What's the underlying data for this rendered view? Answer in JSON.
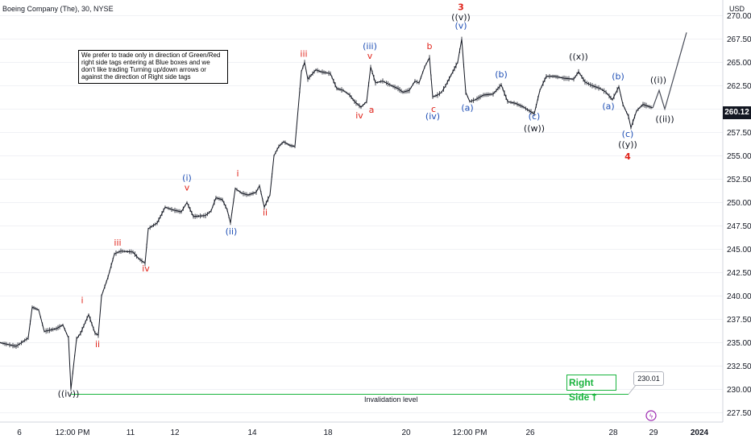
{
  "header": {
    "title": "Boeing Company (The), 30, NYSE",
    "currency": "USD"
  },
  "note": "We prefer to trade only in direction of Green/Red right side tags entering at Blue boxes and we don't like trading Turning up/down arrows or against the direction of Right side tags",
  "right_side_tag": {
    "label": "Right Side",
    "arrow": "⭡"
  },
  "invalidation": {
    "label": "Invalidation level",
    "price": "230.01"
  },
  "last_price": "260.12",
  "chart_data": {
    "type": "line",
    "ylim": [
      226.5,
      272.0
    ],
    "y_ticks": [
      "227.50",
      "230.00",
      "232.50",
      "235.00",
      "237.50",
      "240.00",
      "242.50",
      "245.00",
      "247.50",
      "250.00",
      "252.50",
      "255.00",
      "257.50",
      "260.00",
      "262.50",
      "265.00",
      "267.50",
      "270.00"
    ],
    "x_ticks": [
      "6",
      "12:00 PM",
      "11",
      "12",
      "14",
      "18",
      "20",
      "12:00 PM",
      "26",
      "28",
      "29",
      "2024"
    ],
    "price_path": [
      [
        0,
        235.0
      ],
      [
        20,
        234.6
      ],
      [
        35,
        235.5
      ],
      [
        40,
        238.8
      ],
      [
        48,
        238.5
      ],
      [
        55,
        236.2
      ],
      [
        70,
        236.5
      ],
      [
        78,
        236.9
      ],
      [
        85,
        235.5
      ],
      [
        88,
        230.01
      ],
      [
        95,
        235.4
      ],
      [
        100,
        236.0
      ],
      [
        110,
        238.0
      ],
      [
        118,
        236.0
      ],
      [
        122,
        235.8
      ],
      [
        126,
        240.0
      ],
      [
        134,
        242.0
      ],
      [
        142,
        244.5
      ],
      [
        150,
        244.8
      ],
      [
        165,
        244.7
      ],
      [
        172,
        244.0
      ],
      [
        180,
        243.5
      ],
      [
        184,
        247.2
      ],
      [
        195,
        247.8
      ],
      [
        205,
        249.5
      ],
      [
        215,
        249.2
      ],
      [
        225,
        249.0
      ],
      [
        232,
        250.0
      ],
      [
        240,
        248.5
      ],
      [
        255,
        248.6
      ],
      [
        262,
        249.1
      ],
      [
        268,
        250.5
      ],
      [
        276,
        250.3
      ],
      [
        282,
        249.2
      ],
      [
        286,
        247.8
      ],
      [
        292,
        251.5
      ],
      [
        300,
        251.0
      ],
      [
        308,
        250.8
      ],
      [
        318,
        251.1
      ],
      [
        322,
        251.8
      ],
      [
        328,
        249.5
      ],
      [
        335,
        250.8
      ],
      [
        340,
        255.0
      ],
      [
        346,
        256.0
      ],
      [
        352,
        256.5
      ],
      [
        360,
        256.1
      ],
      [
        366,
        256.0
      ],
      [
        370,
        260.0
      ],
      [
        374,
        264.0
      ],
      [
        378,
        265.0
      ],
      [
        382,
        263.2
      ],
      [
        392,
        264.2
      ],
      [
        398,
        264.0
      ],
      [
        410,
        263.8
      ],
      [
        418,
        262.2
      ],
      [
        426,
        262.0
      ],
      [
        434,
        261.5
      ],
      [
        440,
        260.8
      ],
      [
        448,
        260.2
      ],
      [
        455,
        260.8
      ],
      [
        460,
        264.5
      ],
      [
        466,
        262.8
      ],
      [
        475,
        263.0
      ],
      [
        486,
        262.5
      ],
      [
        494,
        262.2
      ],
      [
        500,
        261.8
      ],
      [
        508,
        262.0
      ],
      [
        515,
        263.0
      ],
      [
        520,
        262.8
      ],
      [
        527,
        264.5
      ],
      [
        533,
        265.5
      ],
      [
        537,
        261.3
      ],
      [
        543,
        261.5
      ],
      [
        548,
        261.8
      ],
      [
        553,
        262.5
      ],
      [
        562,
        264.0
      ],
      [
        568,
        265.0
      ],
      [
        573,
        267.5
      ],
      [
        578,
        261.8
      ],
      [
        583,
        260.8
      ],
      [
        590,
        261.0
      ],
      [
        600,
        261.5
      ],
      [
        612,
        261.6
      ],
      [
        622,
        262.6
      ],
      [
        630,
        260.8
      ],
      [
        640,
        260.6
      ],
      [
        650,
        260.2
      ],
      [
        657,
        259.8
      ],
      [
        663,
        259.5
      ],
      [
        670,
        262.0
      ],
      [
        678,
        263.5
      ],
      [
        688,
        263.5
      ],
      [
        700,
        263.3
      ],
      [
        712,
        263.2
      ],
      [
        718,
        264.0
      ],
      [
        726,
        262.9
      ],
      [
        735,
        262.5
      ],
      [
        745,
        262.2
      ],
      [
        752,
        261.8
      ],
      [
        760,
        261.0
      ],
      [
        768,
        262.4
      ],
      [
        773,
        260.5
      ],
      [
        780,
        259.2
      ],
      [
        783,
        258.0
      ],
      [
        790,
        259.8
      ],
      [
        798,
        260.5
      ],
      [
        810,
        260.12
      ]
    ],
    "projection": [
      [
        810,
        260.12
      ],
      [
        818,
        262.0
      ],
      [
        825,
        260.0
      ],
      [
        852,
        268.2
      ]
    ],
    "wave_labels": [
      {
        "text": "((iv))",
        "x": 85,
        "price": 229.2,
        "color": "black"
      },
      {
        "text": "i",
        "x": 102,
        "price": 239.2,
        "color": "red"
      },
      {
        "text": "ii",
        "x": 121,
        "price": 234.5,
        "color": "red"
      },
      {
        "text": "iii",
        "x": 146,
        "price": 245.4,
        "color": "red"
      },
      {
        "text": "iv",
        "x": 181,
        "price": 242.6,
        "color": "red"
      },
      {
        "text": "(i)",
        "x": 232,
        "price": 252.3,
        "color": "blue"
      },
      {
        "text": "v",
        "x": 232,
        "price": 251.3,
        "color": "red"
      },
      {
        "text": "(ii)",
        "x": 287,
        "price": 246.6,
        "color": "blue"
      },
      {
        "text": "i",
        "x": 295,
        "price": 252.8,
        "color": "red"
      },
      {
        "text": "ii",
        "x": 329,
        "price": 248.6,
        "color": "red"
      },
      {
        "text": "iii",
        "x": 377,
        "price": 265.6,
        "color": "red"
      },
      {
        "text": "(iii)",
        "x": 459,
        "price": 266.4,
        "color": "blue"
      },
      {
        "text": "v",
        "x": 459,
        "price": 265.4,
        "color": "red"
      },
      {
        "text": "iv",
        "x": 446,
        "price": 259.0,
        "color": "red"
      },
      {
        "text": "a",
        "x": 461,
        "price": 259.6,
        "color": "red"
      },
      {
        "text": "b",
        "x": 533,
        "price": 266.4,
        "color": "red"
      },
      {
        "text": "c",
        "x": 538,
        "price": 259.7,
        "color": "red"
      },
      {
        "text": "(iv)",
        "x": 537,
        "price": 258.9,
        "color": "blue"
      },
      {
        "text": "3",
        "x": 572,
        "price": 270.6,
        "color": "red"
      },
      {
        "text": "((v))",
        "x": 572,
        "price": 269.5,
        "color": "black"
      },
      {
        "text": "(v)",
        "x": 572,
        "price": 268.6,
        "color": "blue"
      },
      {
        "text": "(a)",
        "x": 580,
        "price": 259.8,
        "color": "blue"
      },
      {
        "text": "(b)",
        "x": 622,
        "price": 263.4,
        "color": "blue"
      },
      {
        "text": "(c)",
        "x": 663,
        "price": 258.9,
        "color": "blue"
      },
      {
        "text": "((w))",
        "x": 663,
        "price": 257.6,
        "color": "black"
      },
      {
        "text": "((x))",
        "x": 718,
        "price": 265.3,
        "color": "black"
      },
      {
        "text": "(b)",
        "x": 767,
        "price": 263.2,
        "color": "blue"
      },
      {
        "text": "(a)",
        "x": 755,
        "price": 260.0,
        "color": "blue"
      },
      {
        "text": "(c)",
        "x": 779,
        "price": 257.0,
        "color": "blue"
      },
      {
        "text": "((y))",
        "x": 779,
        "price": 255.9,
        "color": "black"
      },
      {
        "text": "4",
        "x": 779,
        "price": 254.6,
        "color": "red"
      },
      {
        "text": "((i))",
        "x": 817,
        "price": 262.8,
        "color": "black"
      },
      {
        "text": "((ii))",
        "x": 825,
        "price": 258.6,
        "color": "black"
      }
    ],
    "colors": {
      "red": "#e0241b",
      "blue": "#1f4fb5",
      "black": "#131722",
      "green": "#19b43d",
      "grid": "#e0e3eb"
    }
  }
}
